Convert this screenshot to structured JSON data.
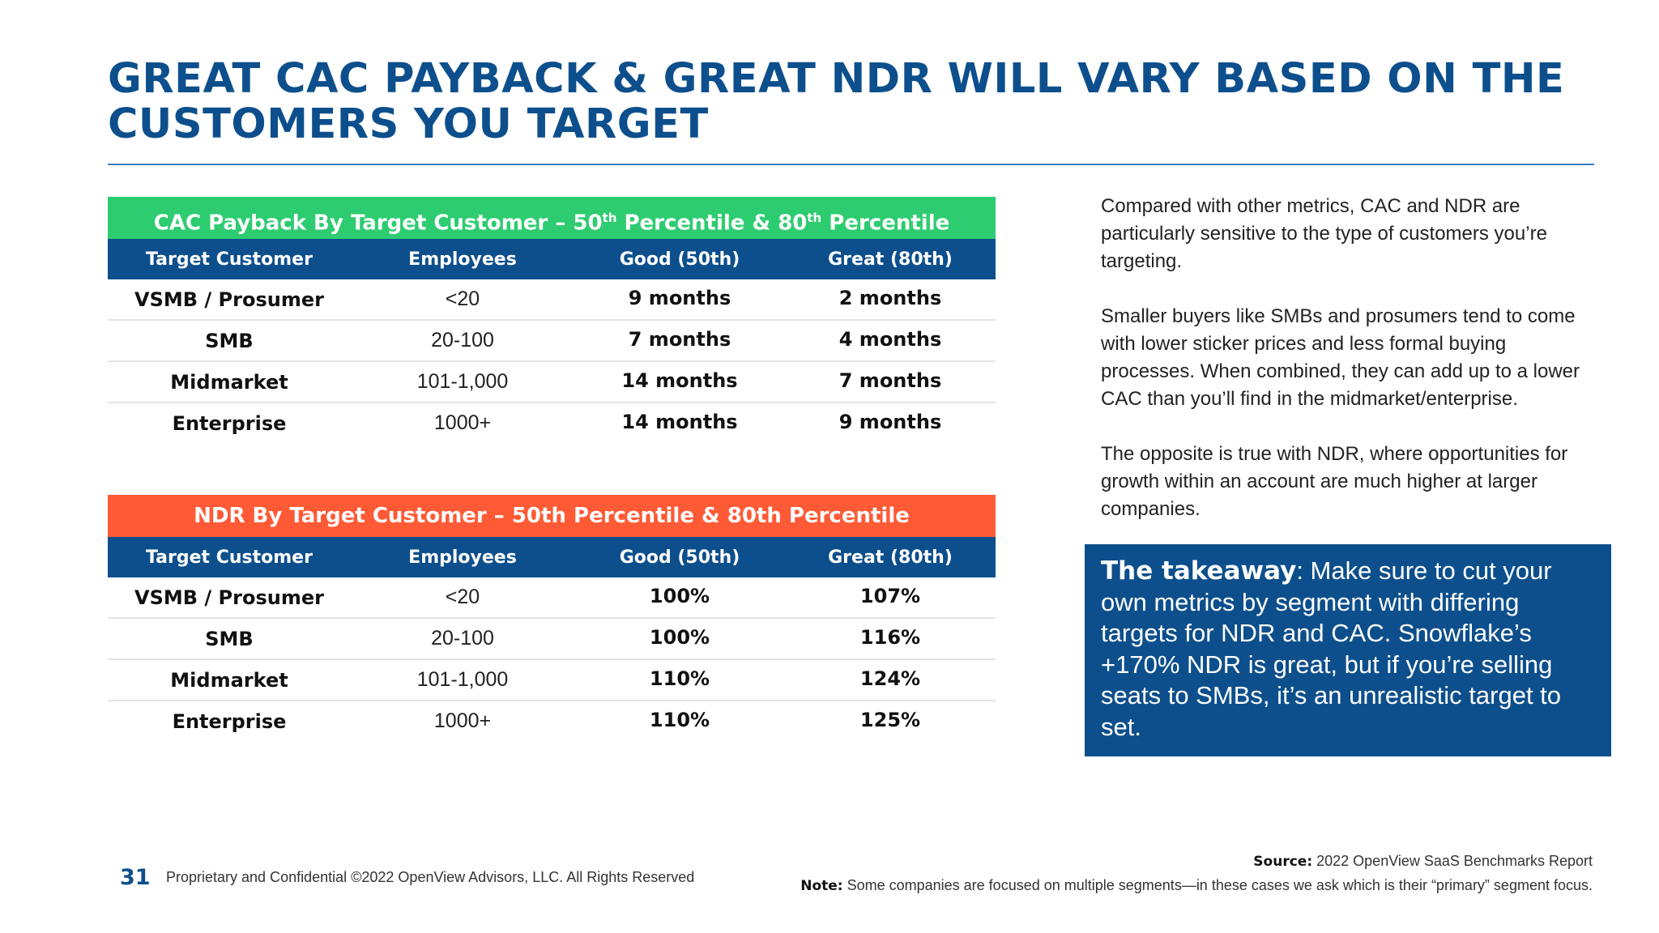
{
  "title": "GREAT CAC PAYBACK & GREAT NDR WILL VARY BASED ON THE CUSTOMERS YOU TARGET",
  "cac_table": {
    "banner_pre": "CAC Payback By Target Customer – 50",
    "banner_sup1": "th",
    "banner_mid": " Percentile & 80",
    "banner_sup2": "th",
    "banner_post": " Percentile",
    "headers": [
      "Target Customer",
      "Employees",
      "Good (50th)",
      "Great (80th)"
    ],
    "rows": [
      [
        "VSMB / Prosumer",
        "<20",
        "9 months",
        "2 months"
      ],
      [
        "SMB",
        "20-100",
        "7 months",
        "4 months"
      ],
      [
        "Midmarket",
        "101-1,000",
        "14 months",
        "7 months"
      ],
      [
        "Enterprise",
        "1000+",
        "14 months",
        "9 months"
      ]
    ]
  },
  "ndr_table": {
    "banner": "NDR By Target Customer – 50th Percentile & 80th Percentile",
    "headers": [
      "Target Customer",
      "Employees",
      "Good (50th)",
      "Great (80th)"
    ],
    "rows": [
      [
        "VSMB / Prosumer",
        "<20",
        "100%",
        "107%"
      ],
      [
        "SMB",
        "20-100",
        "100%",
        "116%"
      ],
      [
        "Midmarket",
        "101-1,000",
        "110%",
        "124%"
      ],
      [
        "Enterprise",
        "1000+",
        "110%",
        "125%"
      ]
    ]
  },
  "side_text": {
    "p1": "Compared with other metrics, CAC and NDR are particularly sensitive to the type of customers you’re targeting.",
    "p2": "Smaller buyers like SMBs and prosumers tend to come with lower sticker prices and less formal buying processes. When combined, they can add up to a lower CAC than you’ll find in the midmarket/enterprise.",
    "p3": "The opposite is true with NDR, where opportunities for growth within an account are much higher at larger companies."
  },
  "takeaway": {
    "label": "The takeaway",
    "text": ": Make sure to cut your own metrics by segment with differing targets for NDR and CAC. Snowflake’s +170% NDR is great, but if you’re selling seats to SMBs, it’s an unrealistic target to set."
  },
  "footer": {
    "page_number": "31",
    "copyright": "Proprietary and Confidential ©2022 OpenView Advisors, LLC. All Rights Reserved",
    "source_label": "Source:",
    "source_text": " 2022 OpenView SaaS Benchmarks Report",
    "note_label": "Note:",
    "note_text": " Some companies are focused on multiple segments—in these cases we ask which is their “primary” segment focus."
  },
  "colors": {
    "brand_blue": "#0d4f8c",
    "green_banner": "#2ecc71",
    "orange_banner": "#ff5a36"
  }
}
